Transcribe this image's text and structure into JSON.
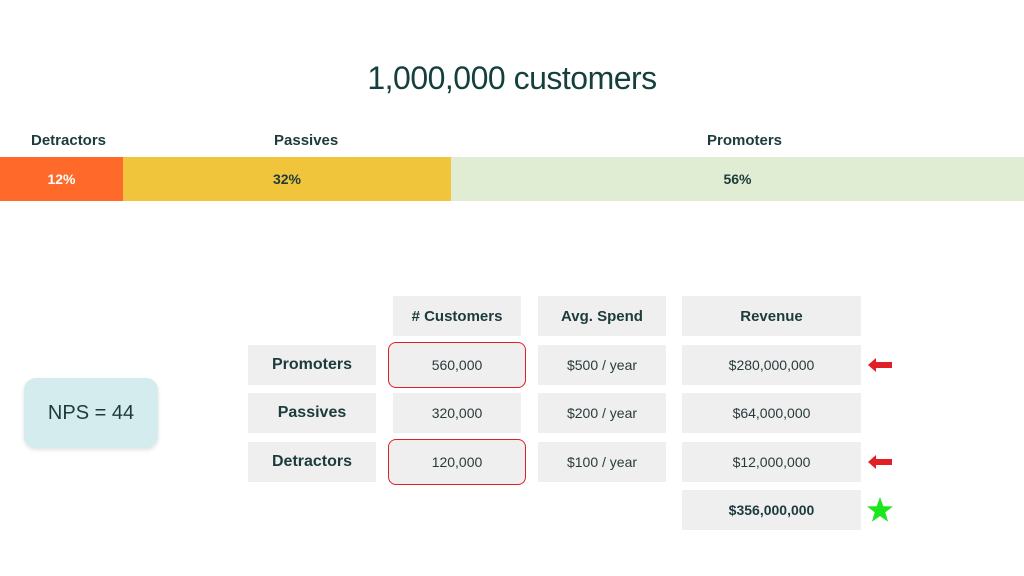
{
  "title": "1,000,000 customers",
  "segments": [
    {
      "label": "Detractors",
      "percent": "12%",
      "fraction": 0.12,
      "color": "#ff6a2a",
      "text_color": "#ffffff"
    },
    {
      "label": "Passives",
      "percent": "32%",
      "fraction": 0.32,
      "color": "#f0c53b",
      "text_color": "#1d3b3c"
    },
    {
      "label": "Promoters",
      "percent": "56%",
      "fraction": 0.56,
      "color": "#e0edd3",
      "text_color": "#1d3b3c"
    }
  ],
  "table": {
    "headers": [
      "# Customers",
      "Avg. Spend",
      "Revenue"
    ],
    "rows": [
      {
        "label": "Promoters",
        "customers": "560,000",
        "spend": "$500 / year",
        "revenue": "$280,000,000"
      },
      {
        "label": "Passives",
        "customers": "320,000",
        "spend": "$200 / year",
        "revenue": "$64,000,000"
      },
      {
        "label": "Detractors",
        "customers": "120,000",
        "spend": "$100 / year",
        "revenue": "$12,000,000"
      }
    ],
    "total": "$356,000,000"
  },
  "nps": "NPS = 44",
  "colors": {
    "highlight": "#e01f26",
    "arrow": "#e01f26",
    "star": "#1ee61e"
  },
  "icons": {
    "arrow": "left-arrow-icon",
    "star": "star-icon"
  }
}
